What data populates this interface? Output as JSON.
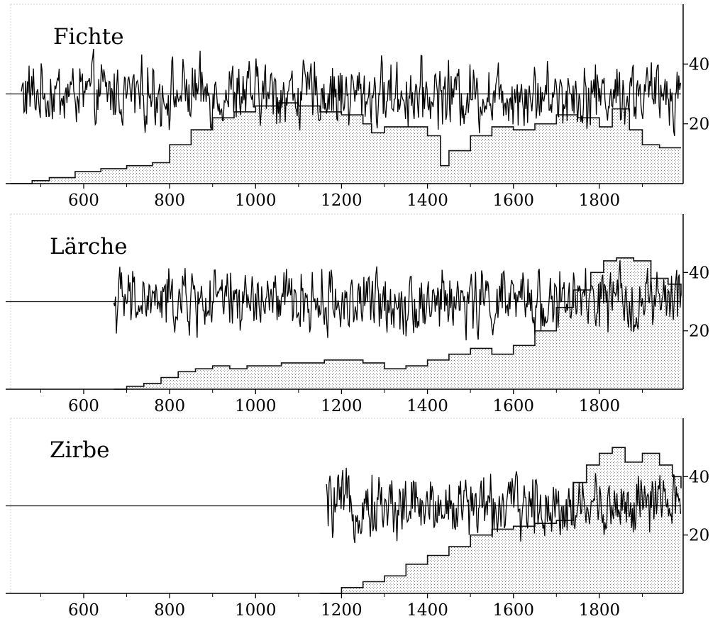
{
  "chart_data": [
    {
      "type": "line",
      "title": "Fichte",
      "xlim": [
        430,
        1995
      ],
      "ylim": [
        0,
        60
      ],
      "x_ticks": [
        600,
        800,
        1000,
        1200,
        1400,
        1600,
        1800
      ],
      "y_ticks": [
        20,
        40
      ],
      "reference_line": 30,
      "ring_index_start": 455,
      "ring_index_end": 1990,
      "replication": {
        "x": [
          430,
          480,
          520,
          580,
          640,
          700,
          760,
          800,
          850,
          900,
          950,
          1000,
          1050,
          1100,
          1150,
          1200,
          1250,
          1270,
          1300,
          1350,
          1400,
          1430,
          1450,
          1500,
          1550,
          1600,
          1650,
          1700,
          1750,
          1800,
          1830,
          1870,
          1900,
          1940,
          1990
        ],
        "y": [
          0,
          1,
          2,
          4,
          5,
          6,
          7,
          13,
          18,
          22,
          24,
          26,
          27,
          26,
          24,
          23,
          20,
          17,
          19,
          19,
          16,
          6,
          11,
          16,
          19,
          18,
          20,
          23,
          22,
          19,
          25,
          18,
          13,
          12,
          12
        ]
      }
    },
    {
      "type": "line",
      "title": "Lärche",
      "xlim": [
        430,
        1995
      ],
      "ylim": [
        0,
        60
      ],
      "x_ticks": [
        600,
        800,
        1000,
        1200,
        1400,
        1600,
        1800
      ],
      "y_ticks": [
        20,
        40
      ],
      "reference_line": 30,
      "ring_index_start": 670,
      "ring_index_end": 1990,
      "replication": {
        "x": [
          670,
          700,
          740,
          780,
          820,
          860,
          900,
          940,
          980,
          1020,
          1060,
          1100,
          1160,
          1200,
          1250,
          1300,
          1350,
          1400,
          1450,
          1500,
          1550,
          1600,
          1650,
          1700,
          1740,
          1780,
          1810,
          1840,
          1880,
          1920,
          1960,
          1990
        ],
        "y": [
          0,
          1,
          2,
          4,
          6,
          7,
          8,
          7,
          8,
          8,
          9,
          9,
          10,
          10,
          9,
          7,
          8,
          10,
          12,
          14,
          12,
          15,
          20,
          28,
          34,
          40,
          44,
          45,
          44,
          38,
          36,
          32
        ]
      }
    },
    {
      "type": "line",
      "title": "Zirbe",
      "xlim": [
        430,
        1995
      ],
      "ylim": [
        0,
        60
      ],
      "x_ticks": [
        600,
        800,
        1000,
        1200,
        1400,
        1600,
        1800
      ],
      "y_ticks": [
        20,
        40
      ],
      "reference_line": 30,
      "ring_index_start": 1165,
      "ring_index_end": 1990,
      "replication": {
        "x": [
          1150,
          1200,
          1250,
          1300,
          1350,
          1400,
          1450,
          1500,
          1550,
          1600,
          1650,
          1700,
          1740,
          1770,
          1800,
          1830,
          1860,
          1900,
          1940,
          1970,
          1990
        ],
        "y": [
          0,
          2,
          4,
          6,
          10,
          13,
          16,
          20,
          22,
          23,
          24,
          25,
          38,
          44,
          48,
          50,
          45,
          48,
          44,
          40,
          36
        ]
      }
    }
  ]
}
